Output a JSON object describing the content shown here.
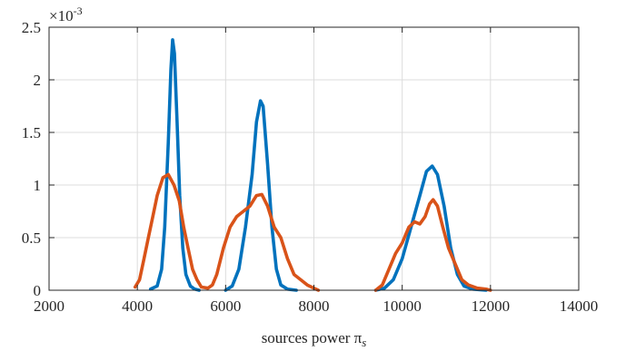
{
  "chart_data": {
    "type": "line",
    "title": "",
    "xlabel": "sources power π",
    "xlabel_subscript": "s",
    "ylabel": "",
    "y_exponent_label": "×10",
    "y_exponent_power": "-3",
    "xlim": [
      2000,
      14000
    ],
    "ylim": [
      0,
      0.0025
    ],
    "x_ticks": [
      2000,
      4000,
      6000,
      8000,
      10000,
      12000,
      14000
    ],
    "x_tick_labels": [
      "2000",
      "4000",
      "6000",
      "8000",
      "10000",
      "12000",
      "14000"
    ],
    "y_ticks": [
      0,
      0.0005,
      0.001,
      0.0015,
      0.002,
      0.0025
    ],
    "y_tick_labels": [
      "0",
      "0.5",
      "1",
      "1.5",
      "2",
      "2.5"
    ],
    "grid": true,
    "colors": {
      "series1": "#0072BD",
      "series2": "#D95319",
      "grid": "#dcdcdc",
      "axes": "#262626"
    },
    "series": [
      {
        "color": "#0072BD",
        "segments": [
          [
            [
              4300,
              1e-05
            ],
            [
              4450,
              4e-05
            ],
            [
              4550,
              0.0002
            ],
            [
              4620,
              0.0006
            ],
            [
              4700,
              0.0014
            ],
            [
              4760,
              0.0021
            ],
            [
              4800,
              0.00238
            ],
            [
              4840,
              0.00225
            ],
            [
              4900,
              0.0016
            ],
            [
              4960,
              0.0009
            ],
            [
              5030,
              0.0004
            ],
            [
              5100,
              0.00015
            ],
            [
              5200,
              4e-05
            ],
            [
              5300,
              1e-05
            ],
            [
              5400,
              0.0
            ]
          ],
          [
            [
              6000,
              0.0
            ],
            [
              6150,
              4e-05
            ],
            [
              6300,
              0.0002
            ],
            [
              6450,
              0.0006
            ],
            [
              6600,
              0.0011
            ],
            [
              6700,
              0.0016
            ],
            [
              6790,
              0.0018
            ],
            [
              6850,
              0.00175
            ],
            [
              6950,
              0.0012
            ],
            [
              7050,
              0.0006
            ],
            [
              7150,
              0.0002
            ],
            [
              7250,
              5e-05
            ],
            [
              7400,
              1e-05
            ],
            [
              7600,
              0.0
            ]
          ],
          [
            [
              9400,
              0.0
            ],
            [
              9600,
              2e-05
            ],
            [
              9800,
              0.0001
            ],
            [
              10000,
              0.0003
            ],
            [
              10200,
              0.0006
            ],
            [
              10400,
              0.0009
            ],
            [
              10550,
              0.00113
            ],
            [
              10680,
              0.00118
            ],
            [
              10800,
              0.0011
            ],
            [
              10950,
              0.0008
            ],
            [
              11100,
              0.0004
            ],
            [
              11250,
              0.00015
            ],
            [
              11400,
              4e-05
            ],
            [
              11600,
              1e-05
            ],
            [
              11900,
              0.0
            ]
          ]
        ]
      },
      {
        "color": "#D95319",
        "segments": [
          [
            [
              3950,
              3e-05
            ],
            [
              4050,
              0.0001
            ],
            [
              4150,
              0.0003
            ],
            [
              4250,
              0.0005
            ],
            [
              4350,
              0.0007
            ],
            [
              4450,
              0.0009
            ],
            [
              4580,
              0.00107
            ],
            [
              4700,
              0.0011
            ],
            [
              4830,
              0.001
            ],
            [
              4950,
              0.00085
            ],
            [
              5050,
              0.0006
            ],
            [
              5150,
              0.0004
            ],
            [
              5250,
              0.0002
            ],
            [
              5350,
              0.0001
            ],
            [
              5450,
              3e-05
            ],
            [
              5600,
              2e-05
            ],
            [
              5700,
              5e-05
            ],
            [
              5800,
              0.00015
            ],
            [
              5950,
              0.0004
            ],
            [
              6100,
              0.0006
            ],
            [
              6250,
              0.0007
            ],
            [
              6400,
              0.00075
            ],
            [
              6550,
              0.0008
            ],
            [
              6700,
              0.0009
            ],
            [
              6820,
              0.00091
            ],
            [
              6950,
              0.0008
            ],
            [
              7100,
              0.0006
            ],
            [
              7250,
              0.0005
            ],
            [
              7400,
              0.0003
            ],
            [
              7550,
              0.00015
            ],
            [
              7700,
              0.0001
            ],
            [
              7850,
              5e-05
            ],
            [
              8000,
              2e-05
            ],
            [
              8100,
              0.0
            ]
          ],
          [
            [
              9400,
              0.0
            ],
            [
              9550,
              5e-05
            ],
            [
              9700,
              0.0002
            ],
            [
              9850,
              0.00035
            ],
            [
              10000,
              0.00045
            ],
            [
              10150,
              0.0006
            ],
            [
              10280,
              0.00065
            ],
            [
              10400,
              0.00063
            ],
            [
              10520,
              0.0007
            ],
            [
              10620,
              0.00082
            ],
            [
              10700,
              0.00086
            ],
            [
              10800,
              0.0008
            ],
            [
              10920,
              0.0006
            ],
            [
              11050,
              0.0004
            ],
            [
              11200,
              0.00025
            ],
            [
              11350,
              0.0001
            ],
            [
              11500,
              5e-05
            ],
            [
              11700,
              2e-05
            ],
            [
              11900,
              1e-05
            ],
            [
              12000,
              0.0
            ]
          ]
        ]
      }
    ]
  }
}
